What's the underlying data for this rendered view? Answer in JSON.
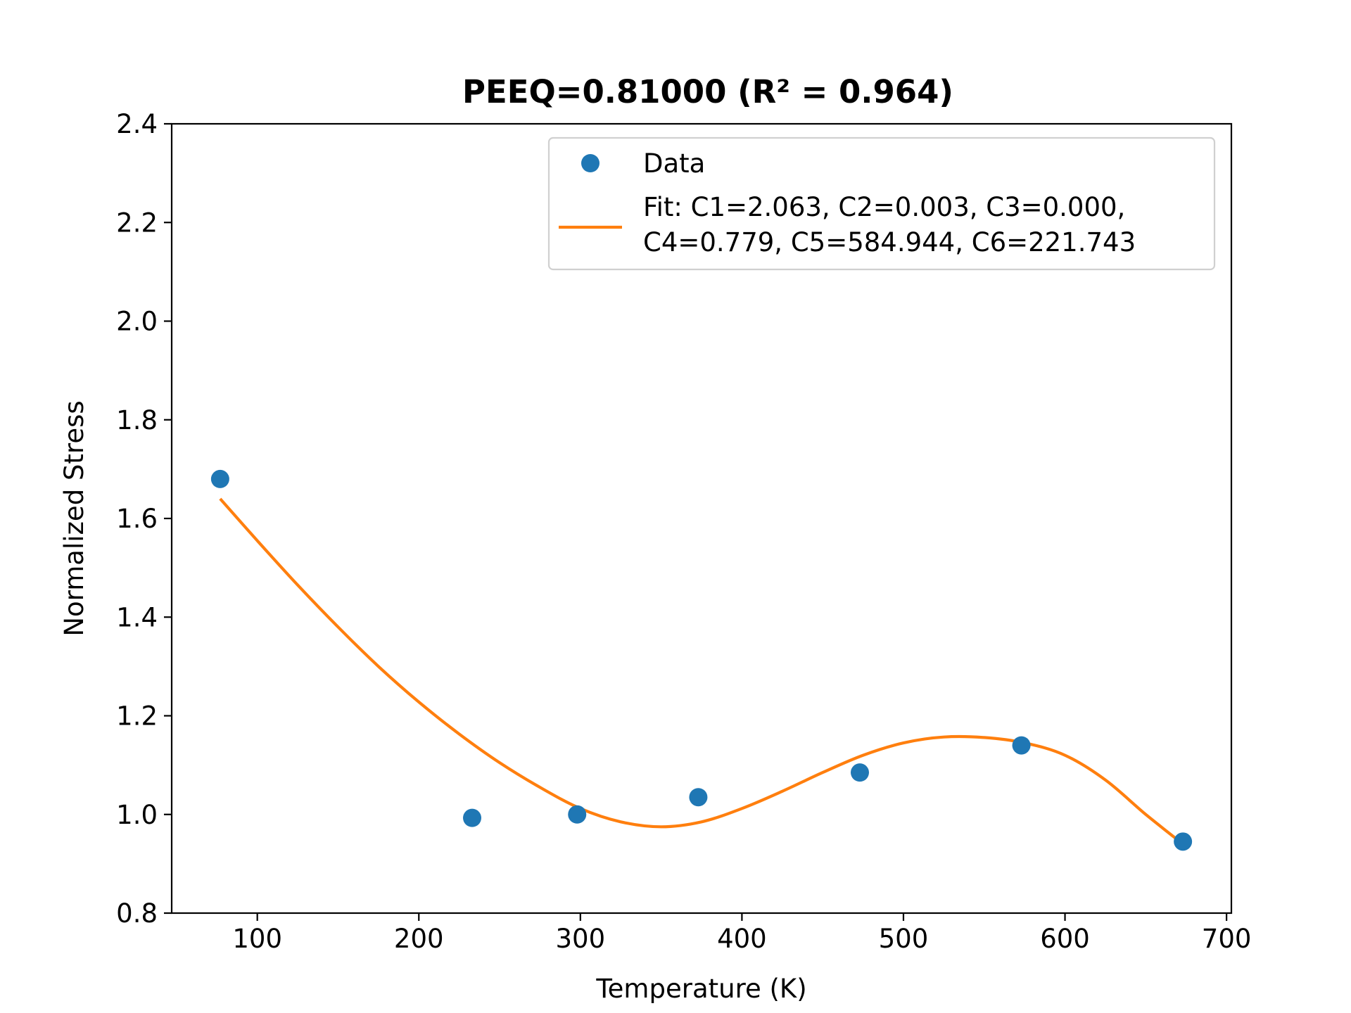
{
  "chart_data": {
    "type": "scatter",
    "title": "PEEQ=0.81000 (R² = 0.964)",
    "xlabel": "Temperature (K)",
    "ylabel": "Normalized Stress",
    "xlim": [
      47,
      703
    ],
    "ylim": [
      0.8,
      2.4
    ],
    "xticks": [
      100,
      200,
      300,
      400,
      500,
      600,
      700
    ],
    "xtick_labels": [
      "100",
      "200",
      "300",
      "400",
      "500",
      "600",
      "700"
    ],
    "yticks": [
      0.8,
      1.0,
      1.2,
      1.4,
      1.6,
      1.8,
      2.0,
      2.2,
      2.4
    ],
    "ytick_labels": [
      "0.8",
      "1.0",
      "1.2",
      "1.4",
      "1.6",
      "1.8",
      "2.0",
      "2.2",
      "2.4"
    ],
    "grid": false,
    "legend_position": "top-right",
    "series": [
      {
        "name": "Data",
        "kind": "scatter",
        "color": "#1f77b4",
        "x": [
          77,
          233,
          298,
          373,
          473,
          573,
          673
        ],
        "y": [
          1.68,
          0.993,
          1.0,
          1.035,
          1.085,
          1.14,
          0.945
        ]
      },
      {
        "name": "Fit: C1=2.063, C2=0.003, C3=0.000, C4=0.779, C5=584.944, C6=221.743",
        "legend_lines": [
          "Fit: C1=2.063, C2=0.003, C3=0.000,",
          "C4=0.779, C5=584.944, C6=221.743"
        ],
        "kind": "line",
        "color": "#ff7f0e",
        "x": [
          77,
          100,
          125,
          150,
          175,
          200,
          225,
          250,
          275,
          300,
          325,
          350,
          375,
          400,
          425,
          450,
          475,
          500,
          525,
          550,
          575,
          600,
          625,
          650,
          673
        ],
        "y": [
          1.64,
          1.555,
          1.465,
          1.38,
          1.3,
          1.228,
          1.163,
          1.105,
          1.055,
          1.012,
          0.985,
          0.975,
          0.985,
          1.012,
          1.047,
          1.085,
          1.12,
          1.145,
          1.157,
          1.156,
          1.145,
          1.12,
          1.07,
          1.0,
          0.94
        ]
      }
    ]
  }
}
